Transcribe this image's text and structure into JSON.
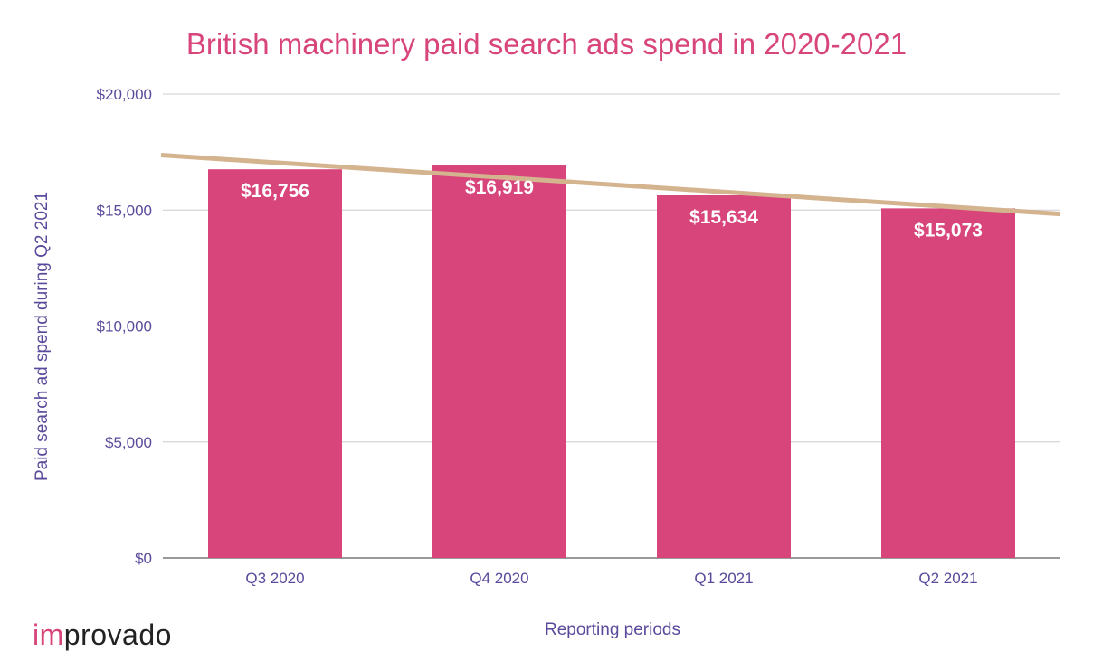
{
  "chart_data": {
    "type": "bar",
    "title": "British machinery paid search ads spend in 2020-2021",
    "xlabel": "Reporting periods",
    "ylabel": "Paid search ad spend during Q2 2021",
    "categories": [
      "Q3 2020",
      "Q4 2020",
      "Q1 2021",
      "Q2 2021"
    ],
    "values": [
      16756,
      16919,
      15634,
      15073
    ],
    "data_labels": [
      "$16,756",
      "$16,919",
      "$15,634",
      "$15,073"
    ],
    "ylim": [
      0,
      20000
    ],
    "yticks": [
      0,
      5000,
      10000,
      15000,
      20000
    ],
    "ytick_labels": [
      "$0",
      "$5,000",
      "$10,000",
      "$15,000",
      "$20,000"
    ],
    "grid": true,
    "legend": "none",
    "trendline": {
      "type": "linear",
      "color": "#d4b38f"
    },
    "colors": {
      "bar": "#d7457b",
      "title": "#d7457b",
      "axis_text": "#5b4a9b",
      "grid": "#cccccc"
    }
  },
  "logo": {
    "prefix": "im",
    "rest": "provado"
  }
}
